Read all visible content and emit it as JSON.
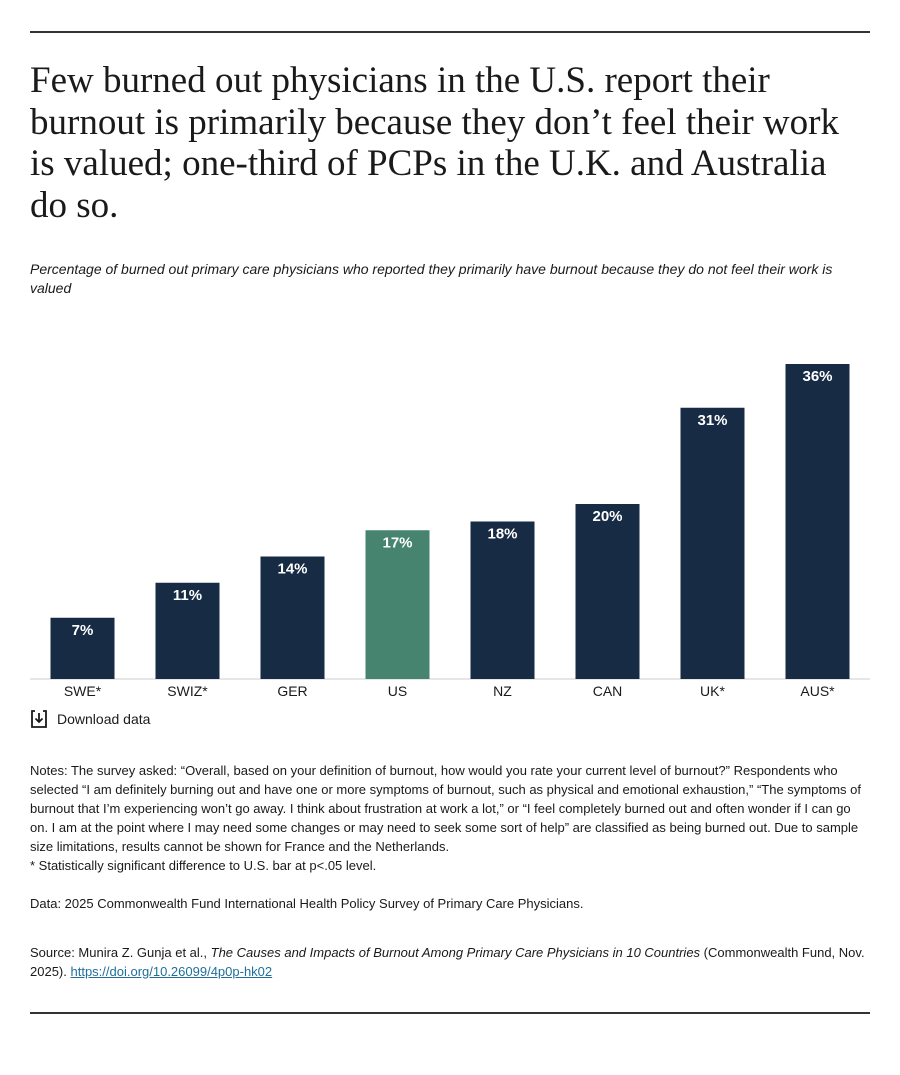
{
  "chart_data": {
    "type": "bar",
    "title": "Few burned out physicians in the U.S. report their burnout is primarily because they don’t feel their work is valued; one-third of PCPs in the U.K. and Australia do so.",
    "subtitle": "Percentage of burned out primary care physicians who reported they primarily have burnout because they do not feel their work is valued",
    "categories": [
      "SWE*",
      "SWIZ*",
      "GER",
      "US",
      "NZ",
      "CAN",
      "UK*",
      "AUS*"
    ],
    "values": [
      7,
      11,
      14,
      17,
      18,
      20,
      31,
      36
    ],
    "value_labels": [
      "7%",
      "11%",
      "14%",
      "17%",
      "18%",
      "20%",
      "31%",
      "36%"
    ],
    "colors": [
      "#172b45",
      "#172b45",
      "#172b45",
      "#468470",
      "#172b45",
      "#172b45",
      "#172b45",
      "#172b45"
    ],
    "ylim": [
      0,
      40
    ],
    "grid": false
  },
  "download": "Download data",
  "notes": {
    "text": "Notes: The survey asked: “Overall, based on your definition of burnout, how would you rate your current level of burnout?” Respondents who selected “I am definitely burning out and have one or more symptoms of burnout, such as physical and emotional exhaustion,” “The symptoms of burnout that I’m experiencing won’t go away. I think about frustration at work a lot,” or “I feel completely burned out and often wonder if I can go on. I am at the point where I may need some changes or may need to seek some sort of help” are classified as being burned out. Due to sample size limitations, results cannot be shown for France and the Netherlands.",
    "significance": "* Statistically significant difference to U.S. bar at p<.05 level."
  },
  "data_source": "Data: 2025 Commonwealth Fund International Health Policy Survey of Primary Care Physicians.",
  "source": {
    "prefix": "Source: Munira Z. Gunja et al., ",
    "title": "The Causes and Impacts of Burnout Among Primary Care Physicians in 10 Countries",
    "suffix": " (Commonwealth Fund, Nov. 2025). ",
    "link": "https://doi.org/10.26099/4p0p-hk02"
  }
}
